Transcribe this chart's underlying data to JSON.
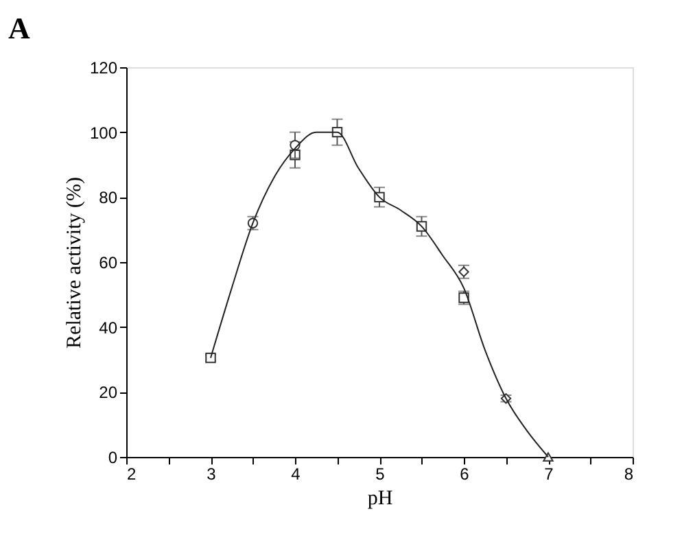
{
  "chart_data": {
    "type": "scatter",
    "title": "A",
    "xlabel": "pH",
    "ylabel": "Relative activity (%)",
    "xlim": [
      2,
      8
    ],
    "xticks": [
      2,
      {
        "value": 2.5,
        "label": null
      },
      3,
      {
        "value": 3.5,
        "label": null
      },
      4,
      {
        "value": 4.5,
        "label": null
      },
      5,
      {
        "value": 5.5,
        "label": null
      },
      6,
      {
        "value": 6.5,
        "label": null
      },
      7,
      {
        "value": 7.5,
        "label": null
      },
      8
    ],
    "ylim": [
      0,
      120
    ],
    "yticks": [
      0,
      20,
      40,
      60,
      80,
      100,
      120
    ],
    "series": [
      {
        "marker": "square",
        "color": "#333333",
        "x": [
          3,
          4,
          4.5,
          5,
          5.5,
          6
        ],
        "values": [
          30.5,
          93,
          100,
          80,
          71,
          49
        ],
        "errors": [
          1,
          4,
          4,
          3,
          3,
          2
        ]
      },
      {
        "marker": "circle",
        "color": "#333333",
        "x": [
          3.5,
          4
        ],
        "values": [
          72,
          96
        ],
        "errors": [
          2,
          4
        ]
      },
      {
        "marker": "diamond",
        "color": "#333333",
        "x": [
          6,
          6.5
        ],
        "values": [
          57,
          18
        ],
        "errors": [
          2,
          1
        ]
      },
      {
        "marker": "triangle",
        "color": "#333333",
        "x": [
          7
        ],
        "values": [
          0
        ],
        "errors": [
          null
        ]
      },
      {
        "type": "line",
        "line_style": "solid",
        "color": "#222222",
        "x": [
          3,
          3.25,
          3.5,
          3.75,
          4,
          4.25,
          4.5,
          4.75,
          5,
          5.25,
          5.5,
          5.75,
          6,
          6.25,
          6.5,
          6.75,
          7
        ],
        "values": [
          30.5,
          52,
          72,
          86,
          95,
          100,
          100,
          89,
          80,
          76,
          71,
          62,
          52,
          33,
          18,
          8,
          0
        ]
      }
    ]
  }
}
